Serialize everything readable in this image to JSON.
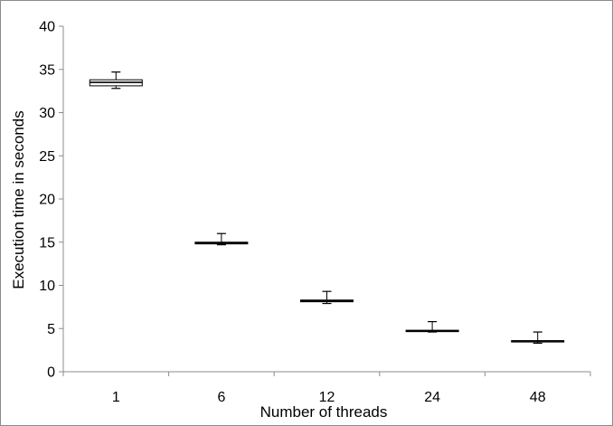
{
  "chart_data": {
    "type": "box",
    "title": "",
    "xlabel": "Number of threads",
    "ylabel": "Execution time in seconds",
    "categories": [
      "1",
      "6",
      "12",
      "24",
      "48"
    ],
    "ylim": [
      0,
      40
    ],
    "yticks": [
      0,
      5,
      10,
      15,
      20,
      25,
      30,
      35,
      40
    ],
    "grid": false,
    "legend": "none",
    "boxes": [
      {
        "category": "1",
        "min": 32.8,
        "q1": 33.1,
        "median": 33.5,
        "q3": 33.8,
        "max": 34.7
      },
      {
        "category": "6",
        "min": 14.7,
        "q1": 14.8,
        "median": 14.9,
        "q3": 15.0,
        "max": 16.0
      },
      {
        "category": "12",
        "min": 7.9,
        "q1": 8.1,
        "median": 8.2,
        "q3": 8.3,
        "max": 9.3
      },
      {
        "category": "24",
        "min": 4.6,
        "q1": 4.65,
        "median": 4.75,
        "q3": 4.8,
        "max": 5.8
      },
      {
        "category": "48",
        "min": 3.3,
        "q1": 3.45,
        "median": 3.55,
        "q3": 3.6,
        "max": 4.6
      }
    ],
    "colors": {
      "axis": "#8c8c8c",
      "box_stroke": "#000000",
      "box_fill": "#ffffff"
    }
  }
}
